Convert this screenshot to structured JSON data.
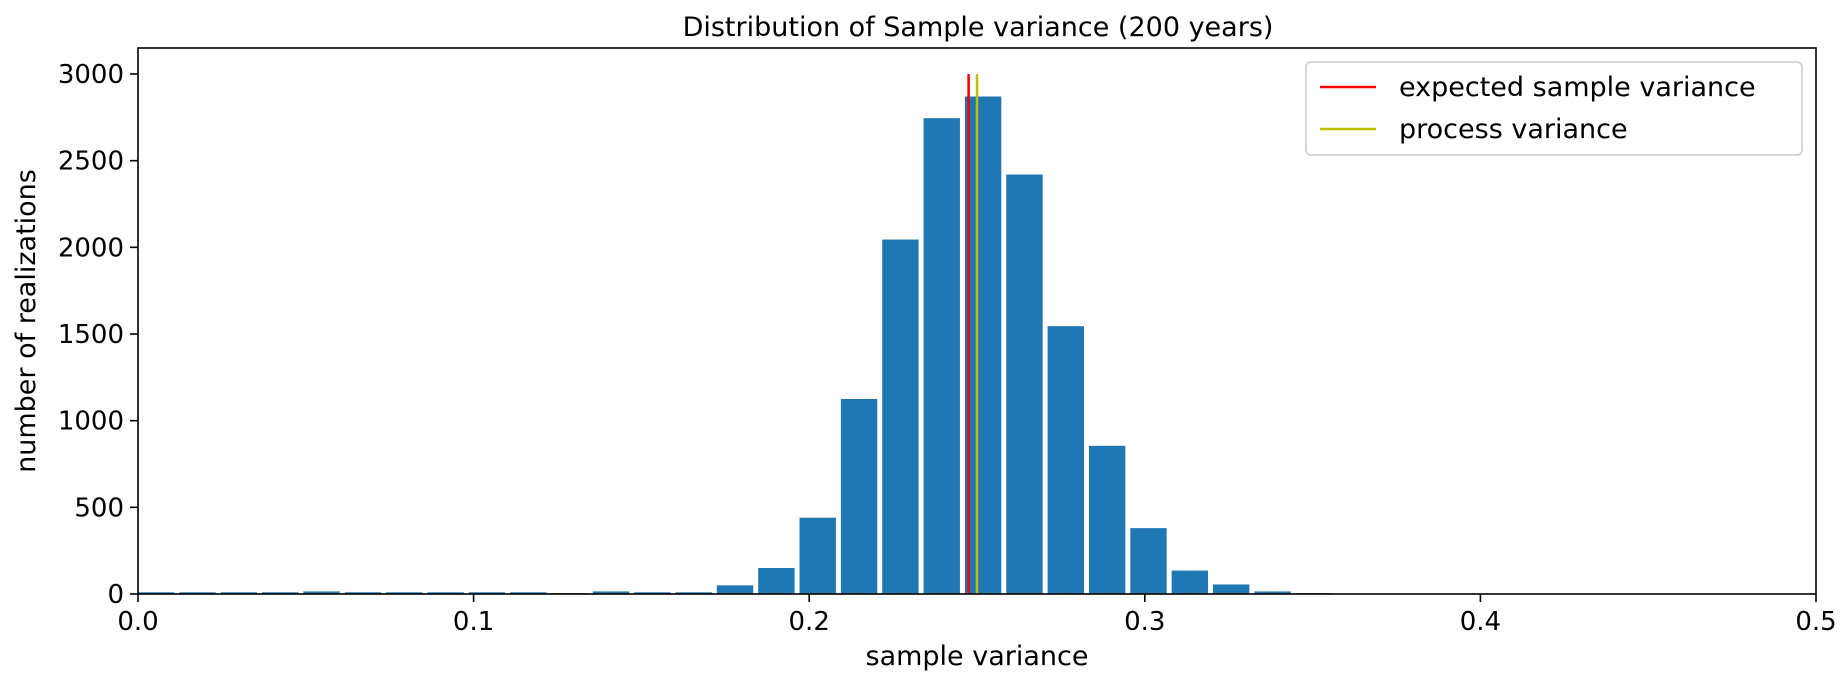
{
  "chart_data": {
    "type": "bar",
    "title": "Distribution of Sample variance (200 years)",
    "xlabel": "sample variance",
    "ylabel": "number of realizations",
    "xlim": [
      0.0,
      0.5
    ],
    "ylim": [
      0,
      3150
    ],
    "xticks": [
      0.0,
      0.1,
      0.2,
      0.3,
      0.4,
      0.5
    ],
    "xtick_labels": [
      "0.0",
      "0.1",
      "0.2",
      "0.3",
      "0.4",
      "0.5"
    ],
    "yticks": [
      0,
      500,
      1000,
      1500,
      2000,
      2500,
      3000
    ],
    "ytick_labels": [
      "0",
      "500",
      "1000",
      "1500",
      "2000",
      "2500",
      "3000"
    ],
    "grid": false,
    "bar_color": "#1f77b4",
    "bins": {
      "start": 0.0,
      "width": 0.01232,
      "bar_fraction": 0.88
    },
    "values": [
      10,
      10,
      10,
      10,
      15,
      10,
      10,
      10,
      10,
      10,
      5,
      15,
      10,
      10,
      50,
      150,
      440,
      1125,
      2045,
      2745,
      2870,
      2420,
      1545,
      855,
      380,
      135,
      55,
      15,
      5,
      2,
      0,
      0,
      0,
      0,
      0,
      0,
      0,
      0,
      0,
      0
    ],
    "reference_lines": [
      {
        "name": "expected sample variance",
        "x": 0.2475,
        "color": "#ff0000"
      },
      {
        "name": "process variance",
        "x": 0.25,
        "color": "#bfbf00"
      }
    ],
    "legend": {
      "placement": "top-right",
      "entries": [
        "expected sample variance",
        "process variance"
      ]
    }
  }
}
